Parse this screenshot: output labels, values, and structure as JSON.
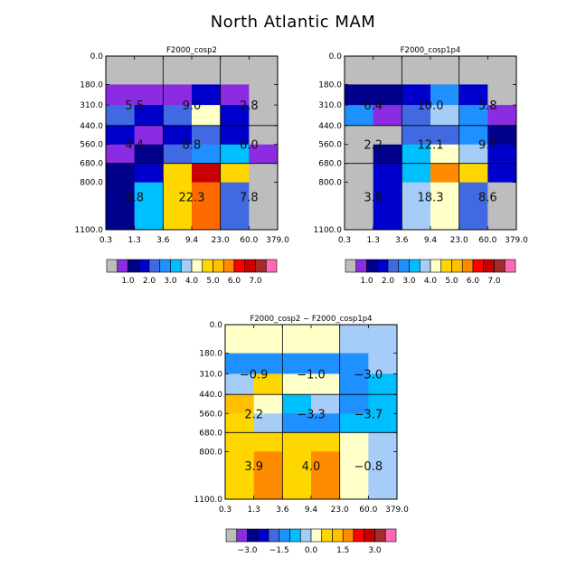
{
  "title": "North Atlantic MAM",
  "palette": {
    "grey": "#bdbdbd",
    "purple": "#8b2be2",
    "navy": "#00008b",
    "blue": "#0000cd",
    "royal_blue": "#4169e1",
    "dodger_blue": "#1e90ff",
    "deep_sky_blue": "#00bfff",
    "light_sky_blue": "#a5cdf8",
    "light_yellow": "#ffffc8",
    "gold": "#ffd700",
    "orange": "#ff8c00",
    "dark_orange": "#ff6a00",
    "red": "#ff0000",
    "dark_red": "#c80000",
    "brown": "#a52a2a",
    "hot_pink": "#ff69b4"
  },
  "chart_data": [
    {
      "type": "heatmap",
      "title": "F2000_cosp2",
      "x_tick_labels": [
        "0.3",
        "1.3",
        "3.6",
        "9.4",
        "23.0",
        "60.0",
        "379.0"
      ],
      "y_tick_labels": [
        "0.0",
        "180.0",
        "310.0",
        "440.0",
        "560.0",
        "680.0",
        "800.0",
        "1100.0"
      ],
      "cells": [
        [
          "#bdbdbd",
          "#bdbdbd",
          "#bdbdbd",
          "#bdbdbd",
          "#bdbdbd",
          "#bdbdbd"
        ],
        [
          "#8b2be2",
          "#8b2be2",
          "#8b2be2",
          "#0000cd",
          "#8b2be2",
          "#bdbdbd"
        ],
        [
          "#4169e1",
          "#0000cd",
          "#4169e1",
          "#ffffc8",
          "#0000cd",
          "#bdbdbd"
        ],
        [
          "#0000cd",
          "#8b2be2",
          "#0000cd",
          "#4169e1",
          "#0000cd",
          "#bdbdbd"
        ],
        [
          "#8b2be2",
          "#00008b",
          "#4169e1",
          "#1e90ff",
          "#00bfff",
          "#8b2be2"
        ],
        [
          "#00008b",
          "#0000cd",
          "#ffd700",
          "#c80000",
          "#ffd700",
          "#bdbdbd"
        ],
        [
          "#00008b",
          "#00bfff",
          "#ffd700",
          "#ff6a00",
          "#4169e1",
          "#bdbdbd"
        ]
      ],
      "group_sums": [
        {
          "row": 0,
          "col": 0,
          "text": "5.5"
        },
        {
          "row": 0,
          "col": 1,
          "text": "9.0"
        },
        {
          "row": 0,
          "col": 2,
          "text": "2.8"
        },
        {
          "row": 1,
          "col": 0,
          "text": "4.4"
        },
        {
          "row": 1,
          "col": 1,
          "text": "8.8"
        },
        {
          "row": 1,
          "col": 2,
          "text": "6.0"
        },
        {
          "row": 2,
          "col": 0,
          "text": "3.8"
        },
        {
          "row": 2,
          "col": 1,
          "text": "22.3"
        },
        {
          "row": 2,
          "col": 2,
          "text": "7.8"
        }
      ],
      "colorbar": {
        "colors": [
          "#bdbdbd",
          "#8b2be2",
          "#00008b",
          "#0000cd",
          "#4169e1",
          "#1e90ff",
          "#00bfff",
          "#a5cdf8",
          "#ffffc8",
          "#ffd700",
          "#ffc000",
          "#ff8c00",
          "#ff0000",
          "#c80000",
          "#a52a2a",
          "#ff69b4"
        ],
        "labels": [
          "1.0",
          "2.0",
          "3.0",
          "4.0",
          "5.0",
          "6.0",
          "7.0"
        ],
        "label_positions": [
          2,
          4,
          6,
          8,
          10,
          12,
          14
        ]
      }
    },
    {
      "type": "heatmap",
      "title": "F2000_cosp1p4",
      "x_tick_labels": [
        "0.3",
        "1.3",
        "3.6",
        "9.4",
        "23.0",
        "60.0",
        "379.0"
      ],
      "y_tick_labels": [
        "0.0",
        "180.0",
        "310.0",
        "440.0",
        "560.0",
        "680.0",
        "800.0",
        "1100.0"
      ],
      "cells": [
        [
          "#bdbdbd",
          "#bdbdbd",
          "#bdbdbd",
          "#bdbdbd",
          "#bdbdbd",
          "#bdbdbd"
        ],
        [
          "#00008b",
          "#00008b",
          "#0000cd",
          "#1e90ff",
          "#0000cd",
          "#bdbdbd"
        ],
        [
          "#1e90ff",
          "#8b2be2",
          "#4169e1",
          "#a5cdf8",
          "#1e90ff",
          "#8b2be2"
        ],
        [
          "#bdbdbd",
          "#bdbdbd",
          "#4169e1",
          "#4169e1",
          "#1e90ff",
          "#00008b"
        ],
        [
          "#bdbdbd",
          "#00008b",
          "#00bfff",
          "#ffffc8",
          "#a5cdf8",
          "#0000cd"
        ],
        [
          "#bdbdbd",
          "#0000cd",
          "#00bfff",
          "#ff8c00",
          "#ffd700",
          "#0000cd"
        ],
        [
          "#bdbdbd",
          "#0000cd",
          "#a5cdf8",
          "#ffffc8",
          "#4169e1",
          "#bdbdbd"
        ]
      ],
      "group_sums": [
        {
          "row": 0,
          "col": 0,
          "text": "6.4"
        },
        {
          "row": 0,
          "col": 1,
          "text": "10.0"
        },
        {
          "row": 0,
          "col": 2,
          "text": "5.8"
        },
        {
          "row": 1,
          "col": 0,
          "text": "2.2"
        },
        {
          "row": 1,
          "col": 1,
          "text": "12.1"
        },
        {
          "row": 1,
          "col": 2,
          "text": "9.7"
        },
        {
          "row": 2,
          "col": 0,
          "text": "3.8"
        },
        {
          "row": 2,
          "col": 1,
          "text": "18.3"
        },
        {
          "row": 2,
          "col": 2,
          "text": "8.6"
        }
      ],
      "colorbar": {
        "colors": [
          "#bdbdbd",
          "#8b2be2",
          "#00008b",
          "#0000cd",
          "#4169e1",
          "#1e90ff",
          "#00bfff",
          "#a5cdf8",
          "#ffffc8",
          "#ffd700",
          "#ffc000",
          "#ff8c00",
          "#ff0000",
          "#c80000",
          "#a52a2a",
          "#ff69b4"
        ],
        "labels": [
          "1.0",
          "2.0",
          "3.0",
          "4.0",
          "5.0",
          "6.0",
          "7.0"
        ],
        "label_positions": [
          2,
          4,
          6,
          8,
          10,
          12,
          14
        ]
      }
    },
    {
      "type": "heatmap",
      "title": "F2000_cosp2 − F2000_cosp1p4",
      "x_tick_labels": [
        "0.3",
        "1.3",
        "3.6",
        "9.4",
        "23.0",
        "60.0",
        "379.0"
      ],
      "y_tick_labels": [
        "0.0",
        "180.0",
        "310.0",
        "440.0",
        "560.0",
        "680.0",
        "800.0",
        "1100.0"
      ],
      "cells": [
        [
          "#ffffc8",
          "#ffffc8",
          "#ffffc8",
          "#ffffc8",
          "#a5cdf8",
          "#a5cdf8"
        ],
        [
          "#1e90ff",
          "#1e90ff",
          "#1e90ff",
          "#1e90ff",
          "#1e90ff",
          "#a5cdf8"
        ],
        [
          "#a5cdf8",
          "#ffd700",
          "#ffffc8",
          "#ffffc8",
          "#1e90ff",
          "#00bfff"
        ],
        [
          "#ffc000",
          "#ffffc8",
          "#00bfff",
          "#a5cdf8",
          "#1e90ff",
          "#00bfff"
        ],
        [
          "#ffd700",
          "#a5cdf8",
          "#1e90ff",
          "#1e90ff",
          "#00bfff",
          "#00bfff"
        ],
        [
          "#ffd700",
          "#ffd700",
          "#ffd700",
          "#ffd700",
          "#ffffc8",
          "#a5cdf8"
        ],
        [
          "#ffd700",
          "#ff8c00",
          "#ffd700",
          "#ff8c00",
          "#ffffc8",
          "#a5cdf8"
        ]
      ],
      "group_sums": [
        {
          "row": 0,
          "col": 0,
          "text": "−0.9"
        },
        {
          "row": 0,
          "col": 1,
          "text": "−1.0"
        },
        {
          "row": 0,
          "col": 2,
          "text": "−3.0"
        },
        {
          "row": 1,
          "col": 0,
          "text": "2.2"
        },
        {
          "row": 1,
          "col": 1,
          "text": "−3.3"
        },
        {
          "row": 1,
          "col": 2,
          "text": "−3.7"
        },
        {
          "row": 2,
          "col": 0,
          "text": "3.9"
        },
        {
          "row": 2,
          "col": 1,
          "text": "4.0"
        },
        {
          "row": 2,
          "col": 2,
          "text": "−0.8"
        }
      ],
      "colorbar": {
        "colors": [
          "#bdbdbd",
          "#8b2be2",
          "#00008b",
          "#0000cd",
          "#4169e1",
          "#1e90ff",
          "#00bfff",
          "#a5cdf8",
          "#ffffc8",
          "#ffd700",
          "#ffc000",
          "#ff8c00",
          "#ff0000",
          "#c80000",
          "#a52a2a",
          "#ff69b4"
        ],
        "labels": [
          "−3.0",
          "−1.5",
          "0.0",
          "1.5",
          "3.0"
        ],
        "label_positions": [
          2,
          5,
          8,
          11,
          14
        ]
      }
    }
  ]
}
